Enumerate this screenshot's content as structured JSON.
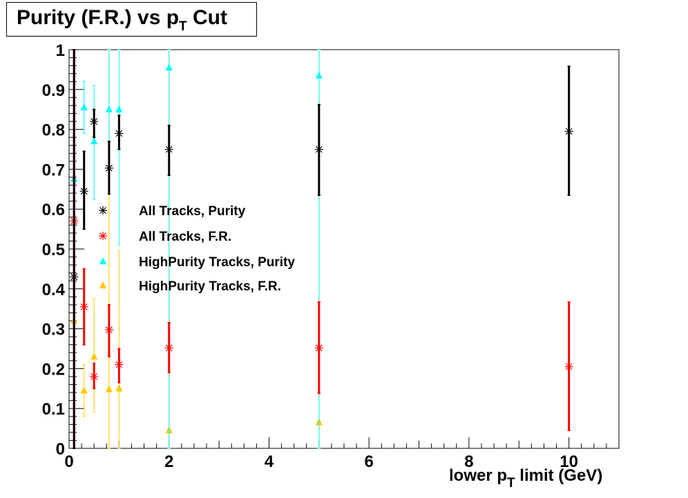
{
  "title": {
    "main": "Purity (F.R.) vs p",
    "sub": "T",
    "tail": " Cut"
  },
  "xlabel": {
    "main": "lower p",
    "sub": "T",
    "tail": " limit (GeV)"
  },
  "chart_data": {
    "type": "scatter",
    "xlim": [
      0,
      11
    ],
    "ylim": [
      0,
      1
    ],
    "x_ticks": [
      0,
      2,
      4,
      6,
      8,
      10
    ],
    "x_tick_labels": [
      "0",
      "2",
      "4",
      "6",
      "8",
      "10"
    ],
    "y_ticks": [
      0,
      0.1,
      0.2,
      0.3,
      0.4,
      0.5,
      0.6,
      0.7,
      0.8,
      0.9,
      1
    ],
    "y_tick_labels": [
      "0",
      "0.1",
      "0.2",
      "0.3",
      "0.4",
      "0.5",
      "0.6",
      "0.7",
      "0.8",
      "0.9",
      "1"
    ],
    "grid": false,
    "legend_position": "middle-left",
    "series": [
      {
        "name": "All Tracks, Purity",
        "color": "#000000",
        "marker": "star",
        "points": [
          {
            "x": 0.1,
            "y": 0.43,
            "lo": 0.0,
            "hi": 1.0
          },
          {
            "x": 0.3,
            "y": 0.645,
            "lo": 0.55,
            "hi": 0.745
          },
          {
            "x": 0.5,
            "y": 0.82,
            "lo": 0.78,
            "hi": 0.85
          },
          {
            "x": 0.8,
            "y": 0.703,
            "lo": 0.638,
            "hi": 0.77
          },
          {
            "x": 1.0,
            "y": 0.79,
            "lo": 0.75,
            "hi": 0.835
          },
          {
            "x": 2.0,
            "y": 0.75,
            "lo": 0.685,
            "hi": 0.81
          },
          {
            "x": 5.0,
            "y": 0.75,
            "lo": 0.635,
            "hi": 0.862
          },
          {
            "x": 10.0,
            "y": 0.795,
            "lo": 0.635,
            "hi": 0.958
          }
        ]
      },
      {
        "name": "All Tracks, F.R.",
        "color": "#ff0000",
        "marker": "star",
        "points": [
          {
            "x": 0.1,
            "y": 0.57,
            "lo": 0.0,
            "hi": 1.0
          },
          {
            "x": 0.3,
            "y": 0.355,
            "lo": 0.26,
            "hi": 0.45
          },
          {
            "x": 0.5,
            "y": 0.18,
            "lo": 0.15,
            "hi": 0.213
          },
          {
            "x": 0.8,
            "y": 0.297,
            "lo": 0.23,
            "hi": 0.36
          },
          {
            "x": 1.0,
            "y": 0.21,
            "lo": 0.165,
            "hi": 0.25
          },
          {
            "x": 2.0,
            "y": 0.252,
            "lo": 0.19,
            "hi": 0.315
          },
          {
            "x": 5.0,
            "y": 0.252,
            "lo": 0.138,
            "hi": 0.367
          },
          {
            "x": 10.0,
            "y": 0.205,
            "lo": 0.045,
            "hi": 0.367
          }
        ]
      },
      {
        "name": "HighPurity Tracks, Purity",
        "color": "#00ffff",
        "marker": "triangle",
        "points": [
          {
            "x": 0.1,
            "y": 0.675,
            "lo": 0.0,
            "hi": 1.0
          },
          {
            "x": 0.3,
            "y": 0.855,
            "lo": 0.79,
            "hi": 0.92
          },
          {
            "x": 0.5,
            "y": 0.77,
            "lo": 0.625,
            "hi": 0.91
          },
          {
            "x": 0.8,
            "y": 0.85,
            "lo": 0.71,
            "hi": 1.0
          },
          {
            "x": 1.0,
            "y": 0.85,
            "lo": 0.51,
            "hi": 1.0
          },
          {
            "x": 2.0,
            "y": 0.955,
            "lo": 0.0,
            "hi": 1.0
          },
          {
            "x": 5.0,
            "y": 0.935,
            "lo": 0.0,
            "hi": 1.0
          }
        ]
      },
      {
        "name": "HighPurity Tracks, F.R.",
        "color": "#ffc800",
        "marker": "triangle",
        "points": [
          {
            "x": 0.1,
            "y": 0.32,
            "lo": 0.0,
            "hi": 1.0
          },
          {
            "x": 0.3,
            "y": 0.145,
            "lo": 0.08,
            "hi": 0.21
          },
          {
            "x": 0.5,
            "y": 0.23,
            "lo": 0.09,
            "hi": 0.375
          },
          {
            "x": 0.8,
            "y": 0.148,
            "lo": 0.0,
            "hi": 1.0
          },
          {
            "x": 1.0,
            "y": 0.15,
            "lo": 0.0,
            "hi": 0.495
          },
          {
            "x": 2.0,
            "y": 0.045,
            "lo": 0.0,
            "hi": 1.0
          },
          {
            "x": 5.0,
            "y": 0.065,
            "lo": 0.0,
            "hi": 1.0
          }
        ]
      }
    ]
  }
}
